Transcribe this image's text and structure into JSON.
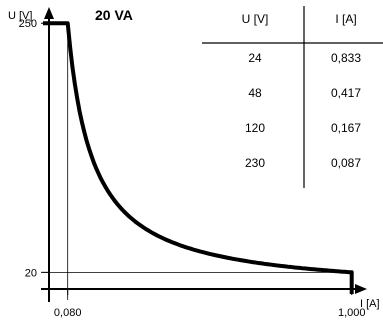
{
  "chart_data": {
    "type": "line",
    "title": "20 VA",
    "xlabel": "I [A]",
    "ylabel": "U [V]",
    "xlim": [
      0,
      1.03
    ],
    "ylim": [
      0,
      265
    ],
    "x_ticks": [
      {
        "value": 0.08,
        "label": "0,080"
      },
      {
        "value": 1.0,
        "label": "1,000"
      }
    ],
    "y_ticks": [
      {
        "value": 20,
        "label": "20"
      },
      {
        "value": 250,
        "label": "250"
      }
    ],
    "series": [
      {
        "power_va": 20,
        "x": [
          0,
          0.08,
          0.08,
          0.1,
          0.125,
          0.15,
          0.2,
          0.25,
          0.3,
          0.4,
          0.5,
          0.6,
          0.7,
          0.8,
          0.9,
          1.0,
          1.0
        ],
        "y": [
          250,
          250,
          250,
          200,
          160,
          133.3,
          100,
          80,
          66.7,
          50,
          40,
          33.3,
          28.6,
          25,
          22.2,
          20,
          0
        ]
      }
    ],
    "grid": false,
    "reference_lines": [
      {
        "orientation": "horizontal",
        "value": 20
      },
      {
        "orientation": "vertical",
        "value": 0.08
      }
    ],
    "table": {
      "headers": [
        "U [V]",
        "I [A]"
      ],
      "rows": [
        [
          "24",
          "0,833"
        ],
        [
          "48",
          "0,417"
        ],
        [
          "120",
          "0,167"
        ],
        [
          "230",
          "0,087"
        ]
      ]
    }
  }
}
